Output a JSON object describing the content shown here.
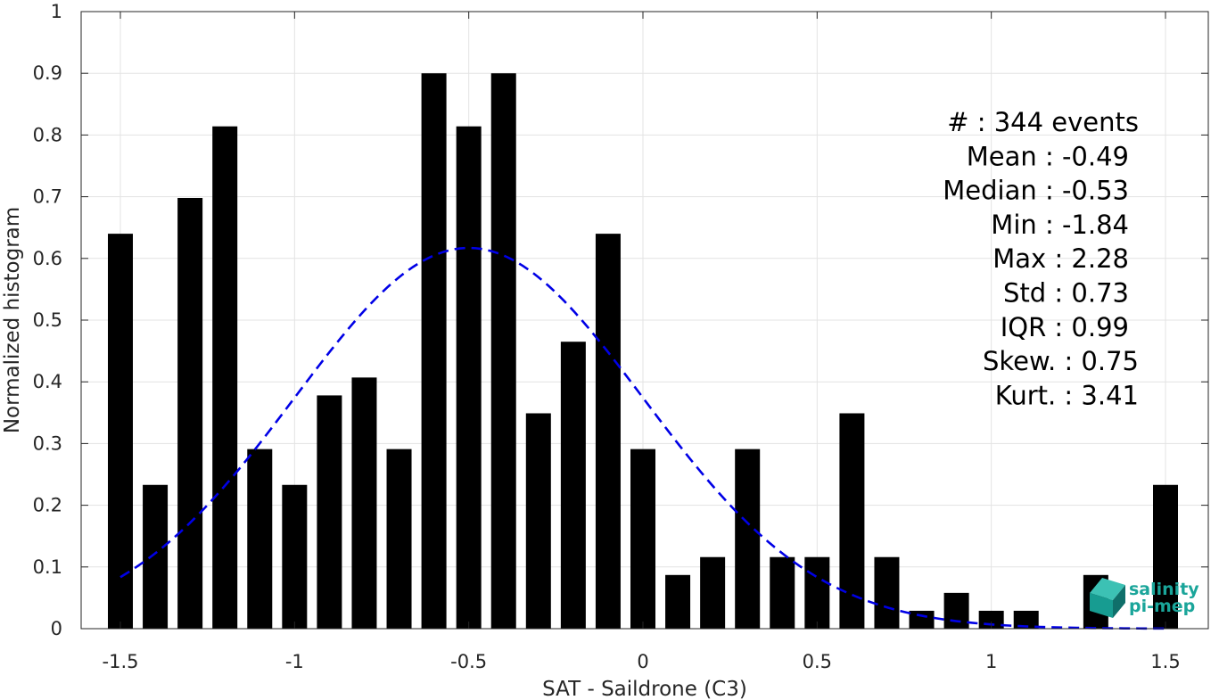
{
  "chart_data": {
    "type": "bar",
    "xlabel": "SAT - Saildrone (C3)",
    "ylabel": "Normalized histogram",
    "xlim": [
      -1.6,
      1.6
    ],
    "ylim": [
      0,
      1
    ],
    "x_ticks": [
      -1.5,
      -1,
      -0.5,
      0,
      0.5,
      1,
      1.5
    ],
    "x_tick_labels": [
      "-1.5",
      "-1",
      "-0.5",
      "0",
      "0.5",
      "1",
      "1.5"
    ],
    "y_ticks": [
      0,
      0.1,
      0.2,
      0.3,
      0.4,
      0.5,
      0.6,
      0.7,
      0.8,
      0.9,
      1
    ],
    "y_tick_labels": [
      "0",
      "0.1",
      "0.2",
      "0.3",
      "0.4",
      "0.5",
      "0.6",
      "0.7",
      "0.8",
      "0.9",
      "1"
    ],
    "grid": true,
    "bar_color": "#000000",
    "fit_color": "#0000e6",
    "bins": [
      {
        "x": -1.5,
        "y": 0.64
      },
      {
        "x": -1.4,
        "y": 0.233
      },
      {
        "x": -1.3,
        "y": 0.698
      },
      {
        "x": -1.2,
        "y": 0.814
      },
      {
        "x": -1.1,
        "y": 0.291
      },
      {
        "x": -1.0,
        "y": 0.233
      },
      {
        "x": -0.9,
        "y": 0.378
      },
      {
        "x": -0.8,
        "y": 0.407
      },
      {
        "x": -0.7,
        "y": 0.291
      },
      {
        "x": -0.6,
        "y": 0.9
      },
      {
        "x": -0.5,
        "y": 0.814
      },
      {
        "x": -0.4,
        "y": 0.9
      },
      {
        "x": -0.3,
        "y": 0.349
      },
      {
        "x": -0.2,
        "y": 0.465
      },
      {
        "x": -0.1,
        "y": 0.64
      },
      {
        "x": 0.0,
        "y": 0.291
      },
      {
        "x": 0.1,
        "y": 0.087
      },
      {
        "x": 0.2,
        "y": 0.116
      },
      {
        "x": 0.3,
        "y": 0.291
      },
      {
        "x": 0.4,
        "y": 0.116
      },
      {
        "x": 0.5,
        "y": 0.116
      },
      {
        "x": 0.6,
        "y": 0.349
      },
      {
        "x": 0.7,
        "y": 0.116
      },
      {
        "x": 0.8,
        "y": 0.029
      },
      {
        "x": 0.9,
        "y": 0.058
      },
      {
        "x": 1.0,
        "y": 0.029
      },
      {
        "x": 1.1,
        "y": 0.029
      },
      {
        "x": 1.3,
        "y": 0.087
      },
      {
        "x": 1.5,
        "y": 0.233
      }
    ],
    "fit": {
      "type": "gaussian",
      "mean": -0.5,
      "peak": 0.617,
      "std": 0.5,
      "x_range": [
        -1.5,
        1.5
      ]
    },
    "stats": [
      "#  : 344 events",
      "Mean : -0.49",
      "Median : -0.53",
      "Min : -1.84",
      "Max : 2.28",
      "Std : 0.73",
      "IQR : 0.99",
      "Skew. : 0.75",
      "Kurt. : 3.41"
    ]
  },
  "logo": {
    "line1": "salinity",
    "line2": "pi-mep",
    "color": "#1aa59a"
  }
}
